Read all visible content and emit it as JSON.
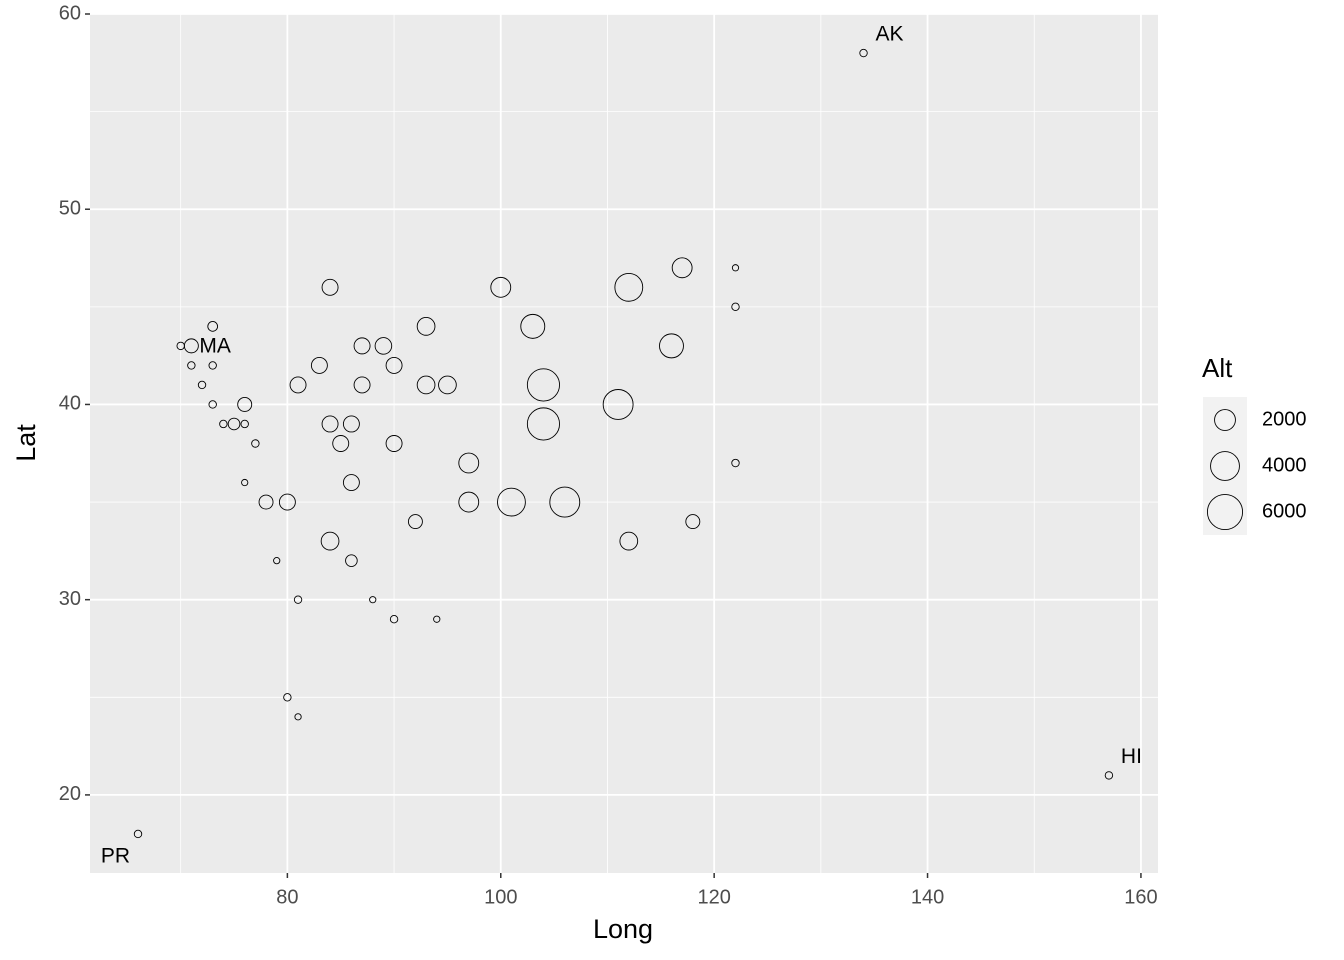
{
  "chart_data": {
    "type": "scatter",
    "x_label": "Long",
    "y_label": "Lat",
    "xlim": [
      61.5,
      161.6
    ],
    "ylim": [
      16,
      60
    ],
    "xticks": [
      80,
      100,
      120,
      140,
      160
    ],
    "yticks": [
      20,
      30,
      40,
      50,
      60
    ],
    "grid": true,
    "panel_color": "#ebebeb",
    "point_color": "#000000",
    "size_legend": {
      "title": "Alt",
      "values": [
        2000,
        4000,
        6000
      ]
    },
    "series": [
      {
        "name": "Alt",
        "x": [
          134,
          157,
          66,
          122,
          122,
          122,
          117,
          112,
          100,
          84,
          103,
          93,
          73,
          116,
          89,
          87,
          71,
          70,
          83,
          90,
          71,
          73,
          104,
          95,
          93,
          87,
          81,
          72,
          111,
          76,
          73,
          104,
          86,
          84,
          76,
          75,
          74,
          77,
          85,
          90,
          97,
          76,
          86,
          106,
          101,
          97,
          80,
          78,
          118,
          92,
          112,
          84,
          86,
          79,
          81,
          88,
          90,
          94,
          80,
          81
        ],
        "values": [
          58,
          21,
          18,
          47,
          45,
          37,
          47,
          46,
          46,
          46,
          44,
          44,
          44,
          43,
          43,
          43,
          43,
          43,
          42,
          42,
          42,
          42,
          41,
          41,
          41,
          41,
          41,
          41,
          40,
          40,
          40,
          39,
          39,
          39,
          39,
          39,
          39,
          38,
          38,
          38,
          37,
          36,
          36,
          35,
          35,
          35,
          35,
          35,
          34,
          34,
          33,
          33,
          32,
          32,
          30,
          30,
          29,
          29,
          25,
          24
        ],
        "sizes": [
          100,
          100,
          100,
          20,
          100,
          100,
          1800,
          3700,
          1800,
          1100,
          2700,
          1400,
          300,
          2700,
          1200,
          1100,
          800,
          100,
          1100,
          1100,
          100,
          100,
          5000,
          1400,
          1400,
          1100,
          1100,
          100,
          4300,
          800,
          100,
          5000,
          1100,
          1100,
          100,
          500,
          100,
          100,
          1100,
          1100,
          1800,
          20,
          1100,
          4300,
          3700,
          1800,
          1100,
          800,
          800,
          800,
          1400,
          1400,
          500,
          20,
          100,
          20,
          100,
          20,
          100,
          20
        ],
        "labels": [
          "AK",
          "HI",
          "PR",
          null,
          null,
          null,
          null,
          null,
          null,
          null,
          null,
          null,
          null,
          null,
          null,
          null,
          "MA",
          null,
          null,
          null,
          null,
          null,
          null,
          null,
          null,
          null,
          null,
          null,
          null,
          null,
          null,
          null,
          null,
          null,
          null,
          null,
          null,
          null,
          null,
          null,
          null,
          null,
          null,
          null,
          null,
          null,
          null,
          null,
          null,
          null,
          null,
          null,
          null,
          null,
          null,
          null,
          null,
          null,
          null,
          null
        ]
      }
    ]
  }
}
